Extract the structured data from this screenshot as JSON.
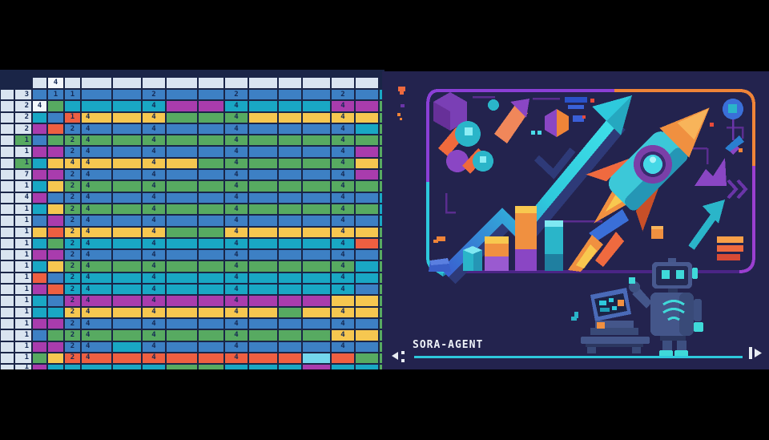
{
  "spreadsheet": {
    "palette": {
      "l": "#d9e4f0",
      "w": "#f3f7fc",
      "b": "#3d80c4",
      "t": "#19a7c4",
      "g": "#57aa61",
      "y": "#f6c750",
      "o": "#ee5f41",
      "m": "#a93cad",
      "c": "#74d6ec",
      "d": "transparent"
    },
    "gridline_color": "#1a2547",
    "number_color": "#152a55",
    "columns": [
      16,
      20,
      17,
      19,
      19,
      37,
      35,
      28,
      38,
      31,
      28,
      35,
      28,
      34,
      28,
      28,
      7
    ],
    "header_cells": [
      "d",
      "d",
      "l",
      "w:4",
      "l",
      "l",
      "l",
      "l",
      "l",
      "l",
      "l",
      "l",
      "l",
      "l",
      "l",
      "l",
      "d"
    ],
    "rows": [
      [
        "l",
        "l:3",
        "b",
        "b:1",
        "b:1",
        "b",
        "b",
        "b:2",
        "b",
        "b",
        "b:2",
        "b",
        "b",
        "b",
        "b:2",
        "b",
        "t"
      ],
      [
        "l",
        "l:2",
        "w:4",
        "g",
        "t",
        "t",
        "t",
        "t:4",
        "m",
        "m",
        "t:4",
        "t",
        "t",
        "t",
        "m:4",
        "m",
        "g"
      ],
      [
        "l",
        "l:2",
        "t",
        "b",
        "o:1",
        "y:4",
        "y",
        "y:4",
        "g",
        "g",
        "g:4",
        "y",
        "y",
        "y",
        "y:4",
        "y",
        "g"
      ],
      [
        "l",
        "l:2",
        "m",
        "o",
        "b:2",
        "b:4",
        "b",
        "b:4",
        "b",
        "b",
        "b:4",
        "b",
        "b",
        "b",
        "b:4",
        "t",
        "g"
      ],
      [
        "l",
        "g:1",
        "b",
        "g",
        "g:2",
        "g:4",
        "g",
        "g:4",
        "g",
        "g",
        "g:4",
        "g",
        "g",
        "g",
        "g:4",
        "g",
        "g"
      ],
      [
        "l",
        "l:1",
        "m",
        "m",
        "b:2",
        "b:4",
        "b",
        "b:4",
        "b",
        "b",
        "b:4",
        "b",
        "b",
        "b",
        "b:4",
        "m",
        "g"
      ],
      [
        "l",
        "g:1",
        "t",
        "y",
        "y:4",
        "y:4",
        "y",
        "y:4",
        "y",
        "g",
        "g:4",
        "g",
        "g",
        "g",
        "g:4",
        "y",
        "g"
      ],
      [
        "l",
        "l:7",
        "m",
        "m",
        "b:2",
        "b:4",
        "b",
        "b:4",
        "b",
        "b",
        "b:4",
        "b",
        "b",
        "b",
        "b:4",
        "m",
        "g"
      ],
      [
        "l",
        "l:1",
        "t",
        "y",
        "g:2",
        "g:4",
        "g",
        "g:4",
        "g",
        "g",
        "g:4",
        "g",
        "g",
        "g",
        "g:4",
        "g",
        "g"
      ],
      [
        "l",
        "l:4",
        "m",
        "b",
        "b:2",
        "b:4",
        "b",
        "b:4",
        "b",
        "b",
        "b:4",
        "b",
        "b",
        "b",
        "b:4",
        "b",
        "t"
      ],
      [
        "l",
        "l:1",
        "t",
        "y",
        "g:2",
        "g:4",
        "g",
        "g:4",
        "g",
        "g",
        "g:4",
        "g",
        "g",
        "g",
        "g:4",
        "g",
        "t"
      ],
      [
        "l",
        "l:1",
        "b",
        "m",
        "b:2",
        "b:4",
        "b",
        "b:4",
        "b",
        "b",
        "b:4",
        "b",
        "b",
        "b",
        "b:4",
        "b",
        "t"
      ],
      [
        "l",
        "l:1",
        "y",
        "o",
        "y:2",
        "y:4",
        "y",
        "y:4",
        "g",
        "g",
        "y:4",
        "y",
        "y",
        "y",
        "y:4",
        "y",
        "g"
      ],
      [
        "l",
        "l:1",
        "t",
        "g",
        "t:2",
        "t:4",
        "t",
        "t:4",
        "t",
        "t",
        "t:4",
        "t",
        "t",
        "t",
        "t:4",
        "o",
        "g"
      ],
      [
        "l",
        "l:1",
        "m",
        "m",
        "b:2",
        "b:4",
        "b",
        "b:4",
        "b",
        "b",
        "b:4",
        "b",
        "b",
        "b",
        "b:4",
        "b",
        "g"
      ],
      [
        "l",
        "l:1",
        "t",
        "y",
        "g:2",
        "g:4",
        "g",
        "g:4",
        "g",
        "g",
        "g:4",
        "g",
        "g",
        "g",
        "g:4",
        "t",
        "g"
      ],
      [
        "l",
        "l:1",
        "o",
        "b",
        "t:2",
        "t:4",
        "t",
        "t:4",
        "t",
        "t",
        "t:4",
        "t",
        "t",
        "t",
        "t:4",
        "t",
        "g"
      ],
      [
        "l",
        "l:1",
        "m",
        "o",
        "t:2",
        "t:4",
        "t",
        "t:4",
        "t",
        "t",
        "t:4",
        "t",
        "t",
        "t",
        "t:4",
        "b",
        "g"
      ],
      [
        "l",
        "l:1",
        "t",
        "b",
        "m:2",
        "m:4",
        "m",
        "m:4",
        "m",
        "m",
        "m:4",
        "m",
        "m",
        "m",
        "y",
        "y",
        "g"
      ],
      [
        "l",
        "l:1",
        "t",
        "t",
        "y:2",
        "y:4",
        "y",
        "y:4",
        "y",
        "y",
        "y:4",
        "y",
        "g",
        "y",
        "y:4",
        "y",
        "g"
      ],
      [
        "l",
        "l:1",
        "m",
        "m",
        "b:2",
        "b:4",
        "b",
        "b:4",
        "b",
        "b",
        "b:4",
        "b",
        "b",
        "b",
        "b:4",
        "b",
        "g"
      ],
      [
        "l",
        "l:1",
        "b",
        "g",
        "g:2",
        "g:4",
        "g",
        "g:4",
        "g",
        "g",
        "g:4",
        "g",
        "g",
        "g",
        "y:4",
        "y",
        "g"
      ],
      [
        "l",
        "l:1",
        "m",
        "m",
        "b:2",
        "b:4",
        "t",
        "b:4",
        "b",
        "b",
        "b:4",
        "b",
        "b",
        "b",
        "b:4",
        "b",
        "g"
      ],
      [
        "l",
        "l:1",
        "g",
        "y",
        "o:2",
        "o:4",
        "o",
        "o:4",
        "o",
        "o",
        "o:4",
        "o",
        "o",
        "c",
        "o",
        "g",
        "g"
      ],
      [
        "l",
        "l:1",
        "m",
        "t",
        "t",
        "t",
        "t",
        "t",
        "g",
        "g",
        "t",
        "t",
        "t",
        "m",
        "t",
        "t",
        "g"
      ]
    ]
  },
  "player": {
    "caption": "SORA-AGENT",
    "icons": {
      "left": "rewind-icon",
      "right": "step-forward-icon"
    }
  },
  "poster": {
    "colors": {
      "bg": "#23234e",
      "purple": "#8b3fd6",
      "orange": "#ef8438",
      "flame": "#f09040",
      "cyan": "#2ec9dc",
      "teal": "#2ab5c9",
      "blue": "#3a6fd8",
      "slate": "#44568a",
      "accent": "#3fd9d9",
      "white": "#eef2f8",
      "magenta": "#a93cad",
      "yellow": "#f8c84f"
    }
  }
}
